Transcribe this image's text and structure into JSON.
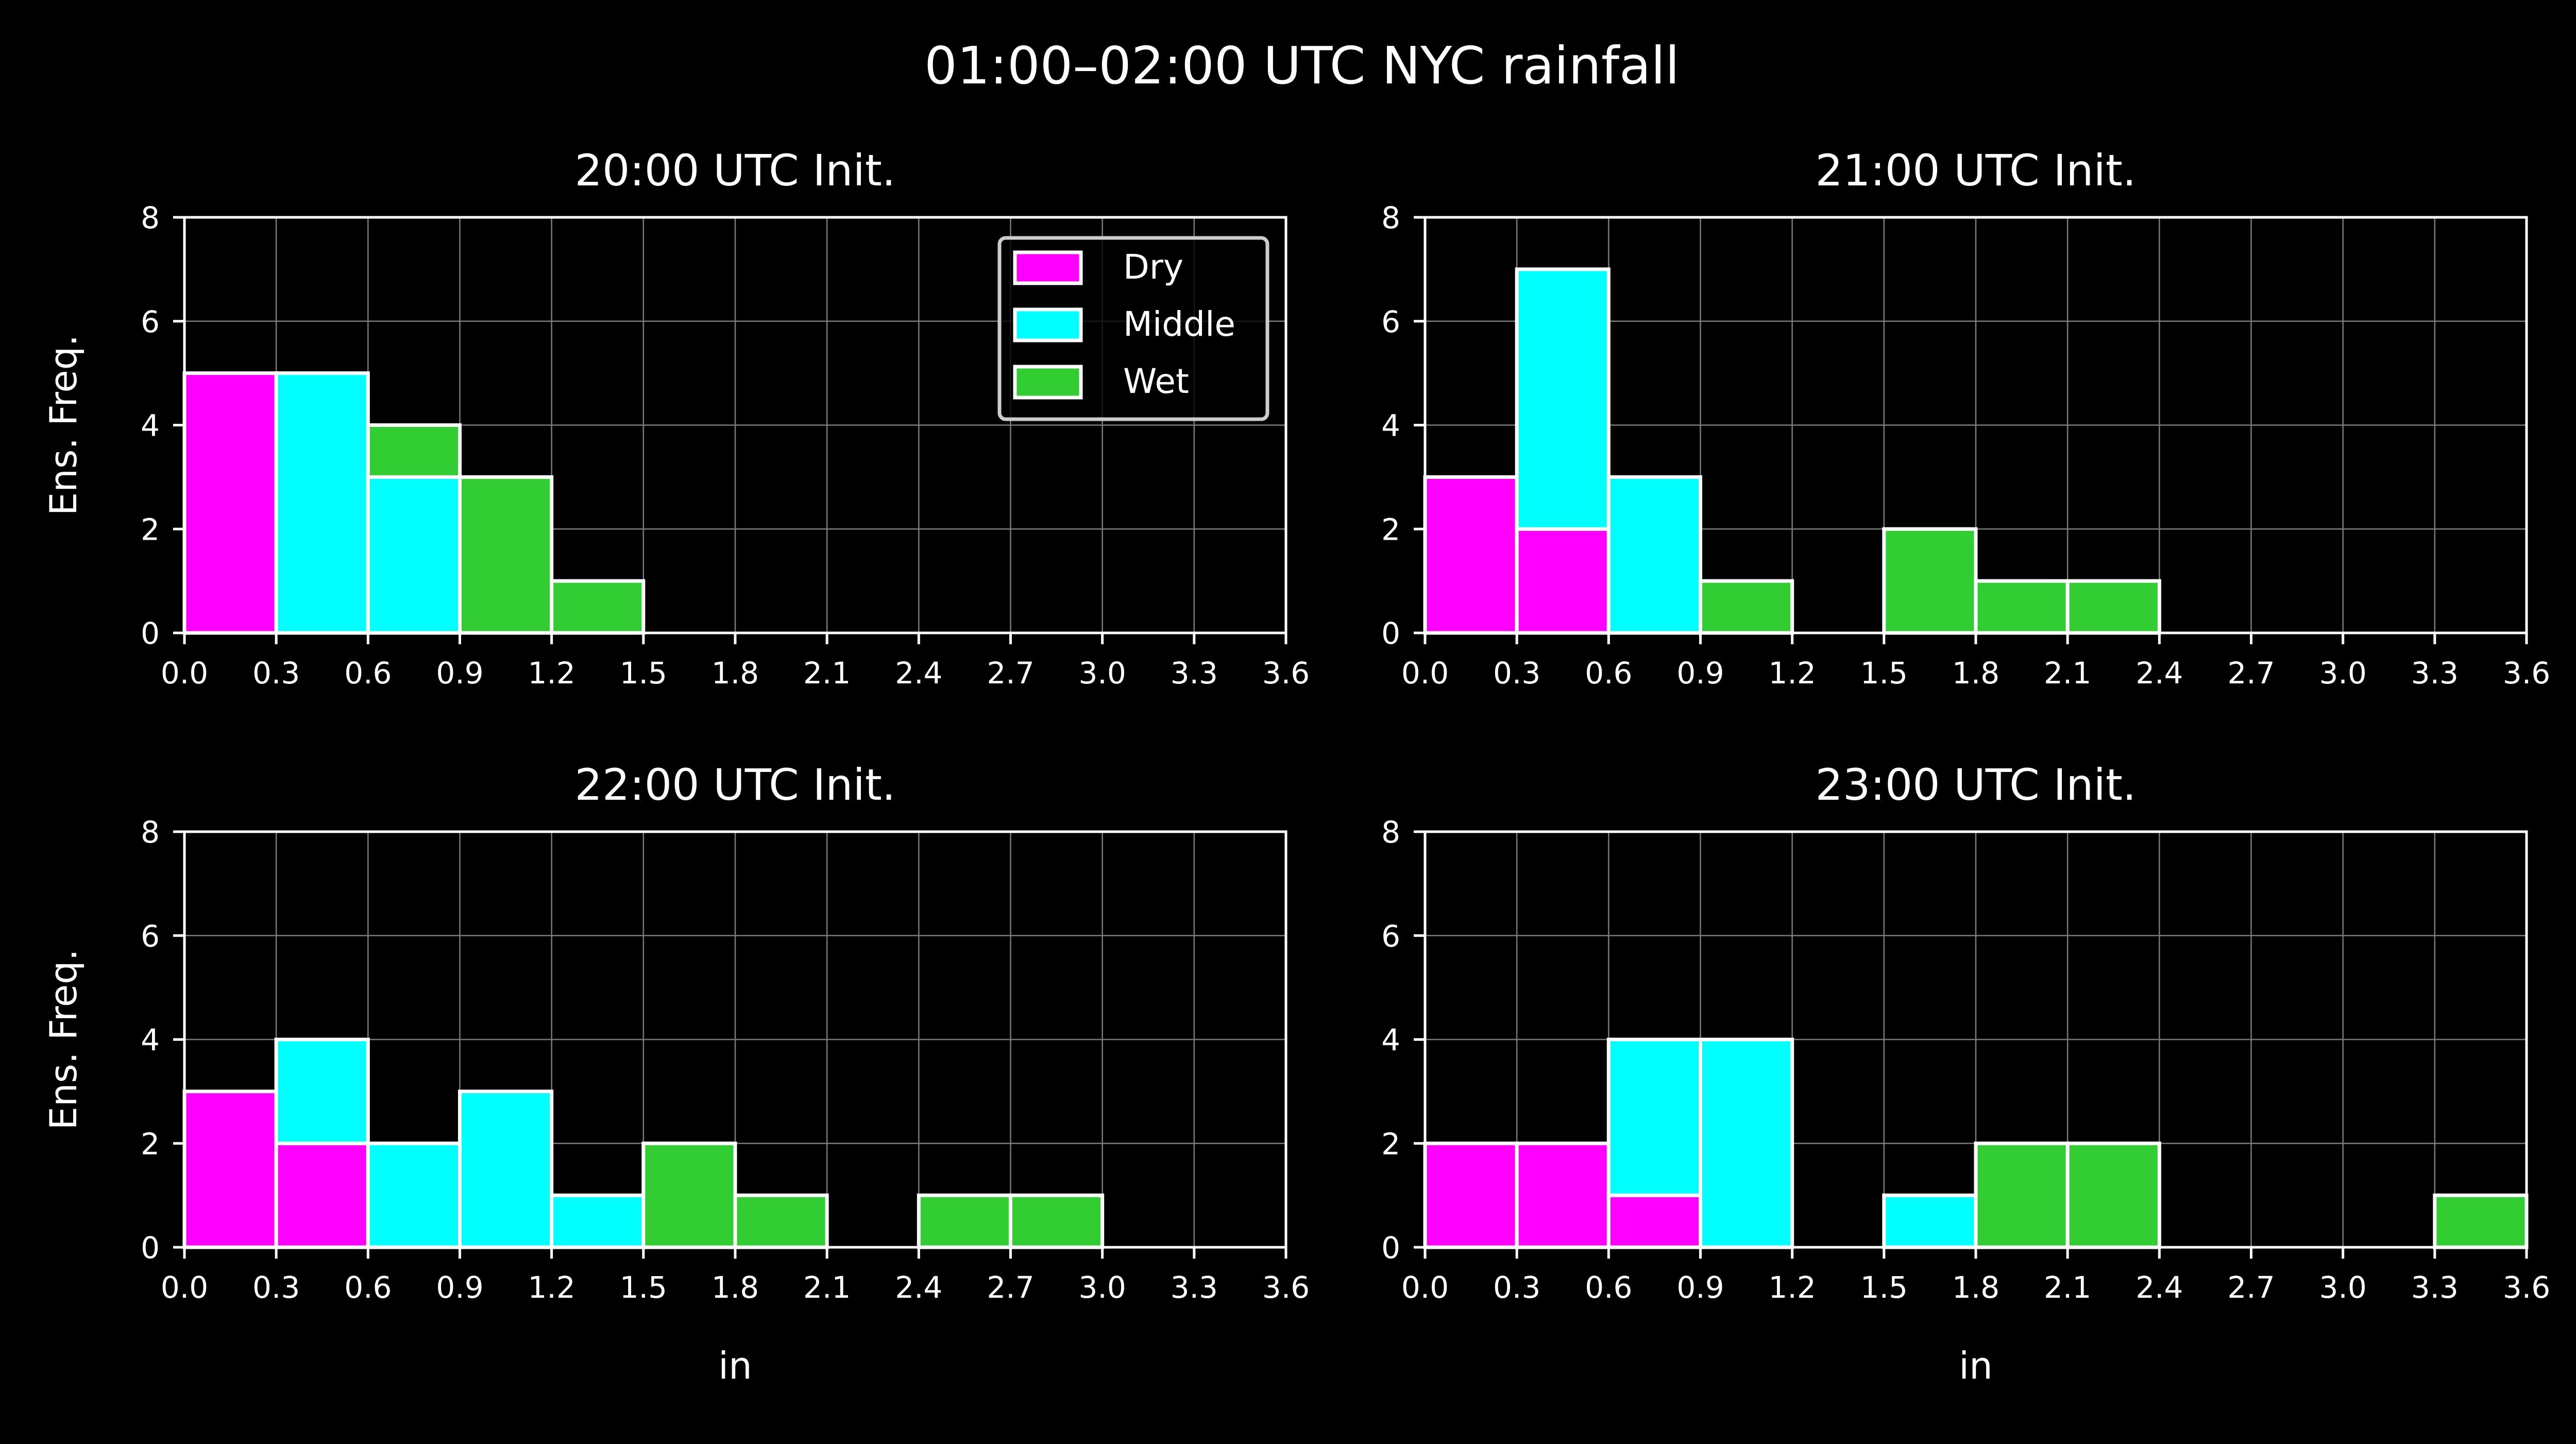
{
  "suptitle": "01:00–02:00 UTC NYC rainfall",
  "colors": {
    "background": "#000000",
    "axes": "#ffffff",
    "grid": "#7a7a7a",
    "Dry": "#ff00ff",
    "Middle": "#00ffff",
    "Wet": "#32cd32"
  },
  "chart_data": [
    {
      "type": "bar",
      "stacked": true,
      "title": "20:00 UTC Init.",
      "xlabel": "",
      "ylabel": "Ens. Freq.",
      "xlim": [
        0,
        3.6
      ],
      "ylim": [
        0,
        8
      ],
      "xticks": [
        "0.0",
        "0.3",
        "0.6",
        "0.9",
        "1.2",
        "1.5",
        "1.8",
        "2.1",
        "2.4",
        "2.7",
        "3.0",
        "3.3",
        "3.6"
      ],
      "yticks": [
        "0",
        "2",
        "4",
        "6",
        "8"
      ],
      "grid": true,
      "bin_edges": [
        0,
        0.3,
        0.6,
        0.9,
        1.2,
        1.5,
        1.8,
        2.1,
        2.4,
        2.7,
        3.0,
        3.3,
        3.6
      ],
      "legend": {
        "position": "top-right",
        "entries": [
          "Dry",
          "Middle",
          "Wet"
        ]
      },
      "series": [
        {
          "name": "Dry",
          "values": [
            5,
            0,
            0,
            0,
            0,
            0,
            0,
            0,
            0,
            0,
            0,
            0
          ]
        },
        {
          "name": "Middle",
          "values": [
            0,
            5,
            3,
            0,
            0,
            0,
            0,
            0,
            0,
            0,
            0,
            0
          ]
        },
        {
          "name": "Wet",
          "values": [
            0,
            0,
            1,
            3,
            1,
            0,
            0,
            0,
            0,
            0,
            0,
            0
          ]
        }
      ]
    },
    {
      "type": "bar",
      "stacked": true,
      "title": "21:00 UTC Init.",
      "xlabel": "",
      "ylabel": "",
      "xlim": [
        0,
        3.6
      ],
      "ylim": [
        0,
        8
      ],
      "xticks": [
        "0.0",
        "0.3",
        "0.6",
        "0.9",
        "1.2",
        "1.5",
        "1.8",
        "2.1",
        "2.4",
        "2.7",
        "3.0",
        "3.3",
        "3.6"
      ],
      "yticks": [
        "0",
        "2",
        "4",
        "6",
        "8"
      ],
      "grid": true,
      "bin_edges": [
        0,
        0.3,
        0.6,
        0.9,
        1.2,
        1.5,
        1.8,
        2.1,
        2.4,
        2.7,
        3.0,
        3.3,
        3.6
      ],
      "series": [
        {
          "name": "Dry",
          "values": [
            3,
            2,
            0,
            0,
            0,
            0,
            0,
            0,
            0,
            0,
            0,
            0
          ]
        },
        {
          "name": "Middle",
          "values": [
            0,
            5,
            3,
            0,
            0,
            0,
            0,
            0,
            0,
            0,
            0,
            0
          ]
        },
        {
          "name": "Wet",
          "values": [
            0,
            0,
            0,
            1,
            0,
            2,
            1,
            1,
            0,
            0,
            0,
            0
          ]
        }
      ]
    },
    {
      "type": "bar",
      "stacked": true,
      "title": "22:00 UTC Init.",
      "xlabel": "in",
      "ylabel": "Ens. Freq.",
      "xlim": [
        0,
        3.6
      ],
      "ylim": [
        0,
        8
      ],
      "xticks": [
        "0.0",
        "0.3",
        "0.6",
        "0.9",
        "1.2",
        "1.5",
        "1.8",
        "2.1",
        "2.4",
        "2.7",
        "3.0",
        "3.3",
        "3.6"
      ],
      "yticks": [
        "0",
        "2",
        "4",
        "6",
        "8"
      ],
      "grid": true,
      "bin_edges": [
        0,
        0.3,
        0.6,
        0.9,
        1.2,
        1.5,
        1.8,
        2.1,
        2.4,
        2.7,
        3.0,
        3.3,
        3.6
      ],
      "series": [
        {
          "name": "Dry",
          "values": [
            3,
            2,
            0,
            0,
            0,
            0,
            0,
            0,
            0,
            0,
            0,
            0
          ]
        },
        {
          "name": "Middle",
          "values": [
            0,
            2,
            2,
            3,
            1,
            0,
            0,
            0,
            0,
            0,
            0,
            0
          ]
        },
        {
          "name": "Wet",
          "values": [
            0,
            0,
            0,
            0,
            0,
            2,
            1,
            0,
            1,
            1,
            0,
            0
          ]
        }
      ]
    },
    {
      "type": "bar",
      "stacked": true,
      "title": "23:00 UTC Init.",
      "xlabel": "in",
      "ylabel": "",
      "xlim": [
        0,
        3.6
      ],
      "ylim": [
        0,
        8
      ],
      "xticks": [
        "0.0",
        "0.3",
        "0.6",
        "0.9",
        "1.2",
        "1.5",
        "1.8",
        "2.1",
        "2.4",
        "2.7",
        "3.0",
        "3.3",
        "3.6"
      ],
      "yticks": [
        "0",
        "2",
        "4",
        "6",
        "8"
      ],
      "grid": true,
      "bin_edges": [
        0,
        0.3,
        0.6,
        0.9,
        1.2,
        1.5,
        1.8,
        2.1,
        2.4,
        2.7,
        3.0,
        3.3,
        3.6
      ],
      "series": [
        {
          "name": "Dry",
          "values": [
            2,
            2,
            1,
            0,
            0,
            0,
            0,
            0,
            0,
            0,
            0,
            0
          ]
        },
        {
          "name": "Middle",
          "values": [
            0,
            0,
            3,
            4,
            0,
            1,
            0,
            0,
            0,
            0,
            0,
            0
          ]
        },
        {
          "name": "Wet",
          "values": [
            0,
            0,
            0,
            0,
            0,
            0,
            2,
            2,
            0,
            0,
            0,
            1
          ]
        }
      ]
    }
  ]
}
